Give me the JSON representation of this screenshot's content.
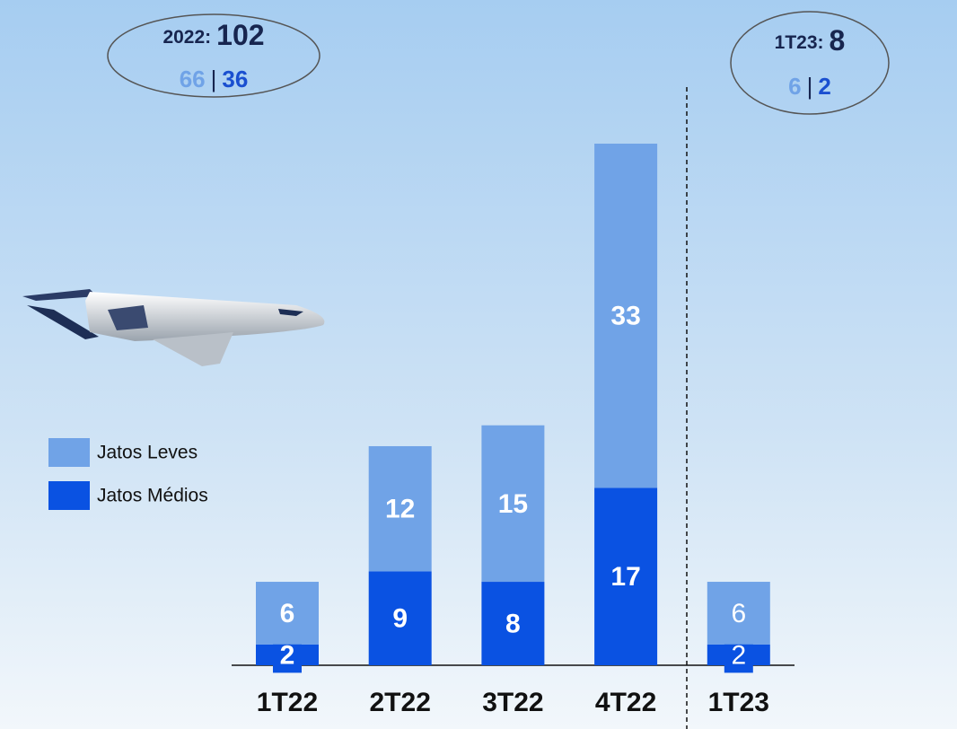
{
  "chart_data": {
    "type": "stacked_bar",
    "categories": [
      "1T22",
      "2T22",
      "3T22",
      "4T22",
      "1T23"
    ],
    "series": [
      {
        "name": "Jatos Médios",
        "color": "#0a52e2",
        "values": [
          2,
          9,
          8,
          17,
          2
        ]
      },
      {
        "name": "Jatos Leves",
        "color": "#70a3e7",
        "values": [
          6,
          12,
          15,
          33,
          6
        ]
      }
    ],
    "annotations": [
      {
        "label": "2022:",
        "total": "102",
        "light": "66",
        "separator": "|",
        "dark": "36"
      },
      {
        "label": "1T23:",
        "total": "8",
        "light": "6",
        "separator": "|",
        "dark": "2"
      }
    ]
  }
}
